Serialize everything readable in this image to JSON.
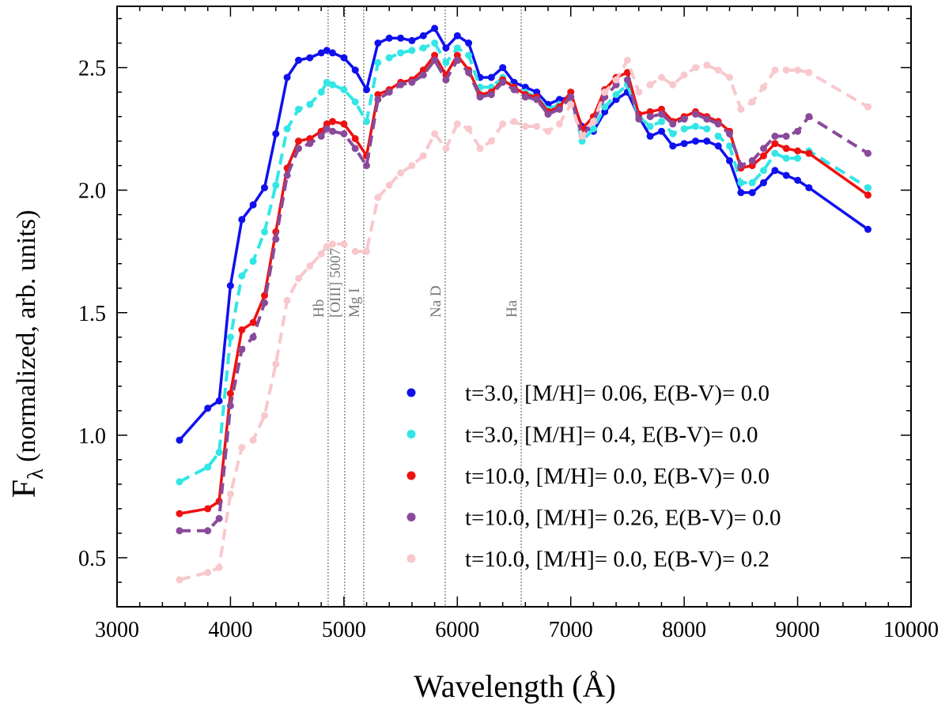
{
  "chart_data": {
    "type": "line",
    "xlabel": "Wavelength (Å)",
    "ylabel": "F",
    "ylabel_sub": "λ",
    "ylabel_rest": " (normalized, arb. units)",
    "xlim": [
      3000,
      10000
    ],
    "ylim": [
      0.3,
      2.75
    ],
    "xticks": [
      3000,
      4000,
      5000,
      6000,
      7000,
      8000,
      9000,
      10000
    ],
    "xtick_labels": [
      "3000",
      "4000",
      "5000",
      "6000",
      "7000",
      "8000",
      "9000",
      "10000"
    ],
    "xminor_step": 200,
    "yticks": [
      0.5,
      1.0,
      1.5,
      2.0,
      2.5
    ],
    "ytick_labels": [
      "0.5",
      "1.0",
      "1.5",
      "2.0",
      "2.5"
    ],
    "yminor_step": 0.1,
    "legend_position": "lower-right",
    "reference_lines": [
      {
        "x": 4861,
        "label": "Hb"
      },
      {
        "x": 5007,
        "label": "[OIII] 5007"
      },
      {
        "x": 5175,
        "label": "Mg I"
      },
      {
        "x": 5893,
        "label": "Na D"
      },
      {
        "x": 6563,
        "label": "Ha"
      }
    ],
    "x": [
      3551,
      3800,
      3900,
      4000,
      4100,
      4200,
      4300,
      4400,
      4500,
      4600,
      4700,
      4800,
      4850,
      4900,
      5000,
      5100,
      5200,
      5300,
      5400,
      5500,
      5600,
      5700,
      5800,
      5900,
      6000,
      6100,
      6200,
      6300,
      6400,
      6500,
      6600,
      6700,
      6800,
      6900,
      7000,
      7100,
      7200,
      7300,
      7400,
      7500,
      7600,
      7700,
      7800,
      7900,
      8000,
      8100,
      8200,
      8300,
      8400,
      8500,
      8600,
      8700,
      8800,
      8900,
      9000,
      9100,
      9620
    ],
    "series": [
      {
        "name": "t=3.0, [M/H]= 0.06, E(B-V)= 0.0",
        "color": "#1010ee",
        "dashed": false,
        "values": [
          0.98,
          1.11,
          1.14,
          1.61,
          1.88,
          1.94,
          2.01,
          2.23,
          2.46,
          2.53,
          2.54,
          2.56,
          2.57,
          2.56,
          2.54,
          2.49,
          2.41,
          2.6,
          2.62,
          2.62,
          2.61,
          2.63,
          2.66,
          2.58,
          2.63,
          2.6,
          2.46,
          2.46,
          2.5,
          2.44,
          2.42,
          2.4,
          2.35,
          2.37,
          2.38,
          2.26,
          2.24,
          2.32,
          2.37,
          2.4,
          2.3,
          2.22,
          2.24,
          2.18,
          2.19,
          2.2,
          2.2,
          2.18,
          2.12,
          1.99,
          1.99,
          2.03,
          2.08,
          2.06,
          2.04,
          2.01,
          1.84
        ]
      },
      {
        "name": "t=3.0, [M/H]= 0.4, E(B-V)= 0.0",
        "color": "#33e6e6",
        "dashed": true,
        "values": [
          0.81,
          0.87,
          0.93,
          1.4,
          1.65,
          1.71,
          1.83,
          2.02,
          2.25,
          2.33,
          2.35,
          2.4,
          2.44,
          2.43,
          2.41,
          2.36,
          2.28,
          2.52,
          2.54,
          2.56,
          2.57,
          2.58,
          2.6,
          2.52,
          2.58,
          2.55,
          2.42,
          2.42,
          2.46,
          2.42,
          2.4,
          2.38,
          2.33,
          2.35,
          2.37,
          2.2,
          2.25,
          2.34,
          2.39,
          2.43,
          2.3,
          2.26,
          2.28,
          2.23,
          2.25,
          2.26,
          2.25,
          2.22,
          2.18,
          2.03,
          2.03,
          2.08,
          2.15,
          2.13,
          2.13,
          2.16,
          2.01
        ]
      },
      {
        "name": "t=10.0, [M/H]= 0.0, E(B-V)= 0.0",
        "color": "#ee1111",
        "dashed": false,
        "values": [
          0.68,
          0.7,
          0.73,
          1.17,
          1.43,
          1.46,
          1.57,
          1.83,
          2.09,
          2.2,
          2.21,
          2.24,
          2.27,
          2.28,
          2.27,
          2.21,
          2.14,
          2.39,
          2.41,
          2.44,
          2.45,
          2.49,
          2.55,
          2.47,
          2.55,
          2.49,
          2.39,
          2.4,
          2.45,
          2.42,
          2.39,
          2.38,
          2.32,
          2.34,
          2.4,
          2.25,
          2.3,
          2.41,
          2.46,
          2.48,
          2.31,
          2.32,
          2.33,
          2.28,
          2.3,
          2.32,
          2.3,
          2.28,
          2.24,
          2.09,
          2.1,
          2.14,
          2.19,
          2.17,
          2.16,
          2.15,
          1.98
        ]
      },
      {
        "name": "t=10.0, [M/H]= 0.26, E(B-V)= 0.0",
        "color": "#8a4a9a",
        "dashed": true,
        "values": [
          0.61,
          0.61,
          0.66,
          1.12,
          1.35,
          1.4,
          1.54,
          1.8,
          2.06,
          2.17,
          2.19,
          2.22,
          2.25,
          2.24,
          2.23,
          2.17,
          2.1,
          2.37,
          2.4,
          2.43,
          2.44,
          2.47,
          2.53,
          2.45,
          2.53,
          2.48,
          2.38,
          2.39,
          2.44,
          2.41,
          2.38,
          2.37,
          2.31,
          2.33,
          2.38,
          2.22,
          2.28,
          2.38,
          2.43,
          2.45,
          2.29,
          2.3,
          2.31,
          2.27,
          2.29,
          2.31,
          2.29,
          2.27,
          2.23,
          2.1,
          2.12,
          2.17,
          2.22,
          2.22,
          2.24,
          2.3,
          2.15
        ]
      },
      {
        "name": "t=10.0, [M/H]= 0.0, E(B-V)= 0.2",
        "color": "#f8c8cc",
        "dashed": true,
        "values": [
          0.41,
          0.44,
          0.46,
          0.76,
          0.95,
          0.98,
          1.08,
          1.29,
          1.55,
          1.64,
          1.69,
          1.74,
          1.77,
          1.78,
          1.78,
          1.75,
          1.75,
          1.97,
          2.02,
          2.07,
          2.1,
          2.14,
          2.23,
          2.17,
          2.27,
          2.25,
          2.17,
          2.2,
          2.27,
          2.28,
          2.26,
          2.26,
          2.24,
          2.27,
          2.35,
          2.22,
          2.28,
          2.4,
          2.45,
          2.53,
          2.4,
          2.43,
          2.46,
          2.43,
          2.47,
          2.5,
          2.51,
          2.49,
          2.46,
          2.33,
          2.36,
          2.42,
          2.49,
          2.49,
          2.49,
          2.48,
          2.34
        ]
      }
    ]
  }
}
